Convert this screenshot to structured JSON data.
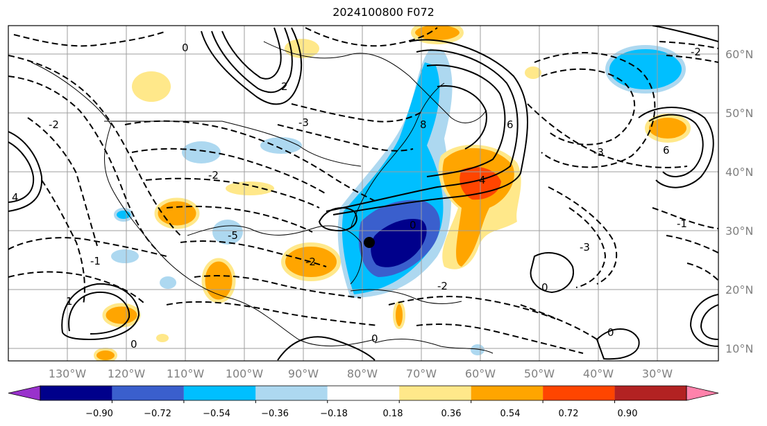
{
  "title": "2024100800 F072",
  "lon_labels": [
    "130°W",
    "120°W",
    "110°W",
    "100°W",
    "90°W",
    "80°W",
    "70°W",
    "60°W",
    "50°W",
    "40°W",
    "30°W"
  ],
  "lat_labels": [
    "60°N",
    "50°N",
    "40°N",
    "30°N",
    "20°N",
    "10°N"
  ],
  "colorbar": {
    "ticks": [
      "−0.90",
      "−0.72",
      "−0.54",
      "−0.36",
      "−0.18",
      "0.18",
      "0.36",
      "0.54",
      "0.72",
      "0.90"
    ],
    "colors": [
      "#9932cc",
      "#00008b",
      "#3a5fcd",
      "#00bfff",
      "#add8f0",
      "#ffffff",
      "#ffe88a",
      "#ffa500",
      "#ff4500",
      "#b22222",
      "#ff82ab"
    ]
  },
  "contour_labels": [
    "-1",
    "0",
    "4",
    "-2",
    "2",
    "-3",
    "6",
    "-4",
    "-6",
    "8",
    "1",
    "-5"
  ],
  "marker": "storm-center"
}
